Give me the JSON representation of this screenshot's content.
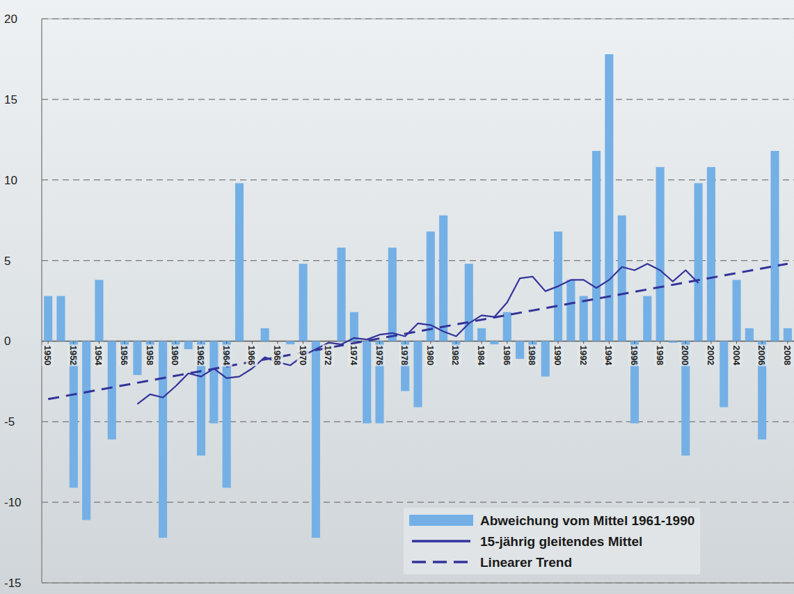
{
  "chart_data": {
    "type": "bar",
    "x": [
      1950,
      1951,
      1952,
      1953,
      1954,
      1955,
      1956,
      1957,
      1958,
      1959,
      1960,
      1961,
      1962,
      1963,
      1964,
      1965,
      1966,
      1967,
      1968,
      1969,
      1970,
      1971,
      1972,
      1973,
      1974,
      1975,
      1976,
      1977,
      1978,
      1979,
      1980,
      1981,
      1982,
      1983,
      1984,
      1985,
      1986,
      1987,
      1988,
      1989,
      1990,
      1991,
      1992,
      1993,
      1994,
      1995,
      1996,
      1997,
      1998,
      1999,
      2000,
      2001,
      2002,
      2003,
      2004,
      2005,
      2006,
      2007,
      2008
    ],
    "series": [
      {
        "name": "Abweichung vom Mittel 1961-1990",
        "type": "bar",
        "color": "#74b0e6",
        "values": [
          2.8,
          2.8,
          -9.1,
          -11.1,
          3.8,
          -6.1,
          -1.1,
          -2.1,
          -1.1,
          -12.2,
          -1.0,
          -0.5,
          -7.1,
          -5.1,
          -9.1,
          9.8,
          0,
          0.8,
          0,
          -0.2,
          4.8,
          -12.2,
          0,
          5.8,
          1.8,
          -5.1,
          -5.1,
          5.8,
          -3.1,
          -4.1,
          6.8,
          7.8,
          -1.0,
          4.8,
          0.8,
          -0.2,
          1.8,
          -1.1,
          -1.1,
          -2.2,
          6.8,
          3.8,
          2.8,
          11.8,
          17.8,
          7.8,
          -5.1,
          2.8,
          10.8,
          -0.1,
          -7.1,
          9.8,
          10.8,
          -4.1,
          3.8,
          0.8,
          -6.1,
          11.8,
          0.8
        ]
      },
      {
        "name": "15-jährig gleitendes Mittel",
        "type": "line",
        "color": "#33339a",
        "line_style": "solid",
        "values": [
          null,
          null,
          null,
          null,
          null,
          null,
          null,
          -3.9,
          -3.3,
          -3.5,
          -2.8,
          -2.0,
          -2.2,
          -1.7,
          -2.3,
          -2.2,
          -1.7,
          -1.0,
          -1.3,
          -1.5,
          -0.9,
          -0.5,
          -0.1,
          -0.2,
          0.2,
          0.1,
          0.4,
          0.5,
          0.3,
          1.1,
          1.0,
          0.6,
          0.3,
          1.1,
          1.6,
          1.5,
          2.4,
          3.9,
          4.0,
          3.1,
          3.4,
          3.8,
          3.8,
          3.3,
          3.8,
          4.6,
          4.4,
          4.8,
          4.4,
          3.7,
          4.4,
          3.6,
          null,
          null,
          null,
          null,
          null,
          null,
          null
        ]
      },
      {
        "name": "Linearer Trend",
        "type": "line",
        "color": "#33339a",
        "line_style": "dashed",
        "x": [
          1950,
          2008
        ],
        "values": [
          -3.6,
          4.8
        ]
      }
    ],
    "xlim": [
      1949.5,
      2008.5
    ],
    "xticks": [
      1950,
      1952,
      1954,
      1956,
      1958,
      1960,
      1962,
      1964,
      1966,
      1968,
      1970,
      1972,
      1974,
      1976,
      1978,
      1980,
      1982,
      1984,
      1986,
      1988,
      1990,
      1992,
      1994,
      1996,
      1998,
      2000,
      2002,
      2004,
      2006,
      2008
    ],
    "ylim": [
      -15,
      20
    ],
    "yticks": [
      -15,
      -10,
      -5,
      0,
      5,
      10,
      15,
      20
    ],
    "grid": true,
    "legend": "lower right"
  }
}
